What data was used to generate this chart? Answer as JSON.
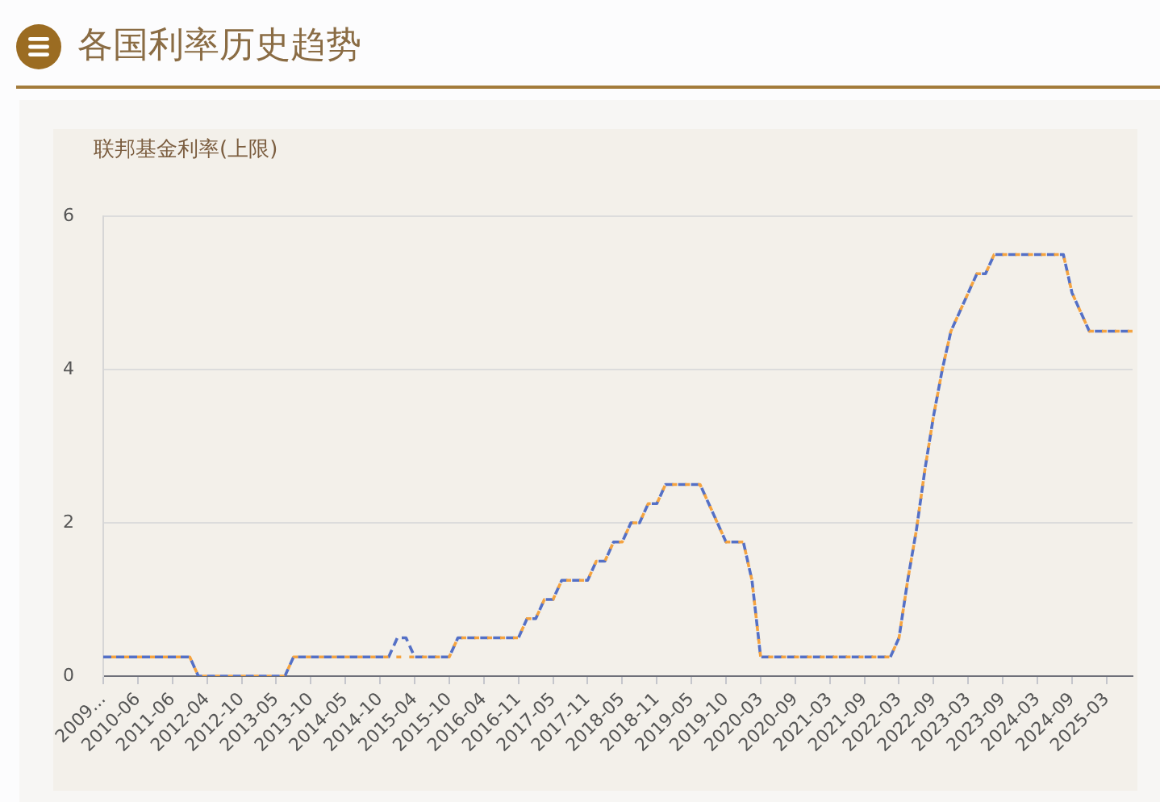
{
  "chart_data": {
    "type": "line",
    "title": "各国利率历史趋势",
    "ylabel": "联邦基金利率(上限)",
    "categories": [
      "2009...",
      null,
      null,
      null,
      "2010-06",
      null,
      null,
      null,
      "2011-06",
      null,
      null,
      null,
      "2012-04",
      null,
      null,
      null,
      "2012-10",
      null,
      null,
      null,
      "2013-05",
      null,
      null,
      null,
      "2013-10",
      null,
      null,
      null,
      "2014-05",
      null,
      null,
      null,
      "2014-10",
      null,
      null,
      null,
      "2015-04",
      null,
      null,
      null,
      "2015-10",
      null,
      null,
      null,
      "2016-04",
      null,
      null,
      null,
      "2016-11",
      null,
      null,
      null,
      "2017-05",
      null,
      null,
      null,
      "2017-11",
      null,
      null,
      null,
      "2018-05",
      null,
      null,
      null,
      "2018-11",
      null,
      null,
      null,
      "2019-05",
      null,
      null,
      null,
      "2019-10",
      null,
      null,
      null,
      "2020-03",
      null,
      null,
      null,
      "2020-09",
      null,
      null,
      null,
      "2021-03",
      null,
      null,
      null,
      "2021-09",
      null,
      null,
      null,
      "2022-03",
      null,
      null,
      null,
      "2022-09",
      null,
      null,
      null,
      "2023-03",
      null,
      null,
      null,
      "2023-09",
      null,
      null,
      null,
      "2024-03",
      null,
      null,
      null,
      "2024-09",
      null,
      null,
      null,
      "2025-03",
      null,
      null,
      null
    ],
    "series": [
      {
        "color": "#5470c6",
        "values": [
          0.25,
          0.25,
          0.25,
          0.25,
          0.25,
          0.25,
          0.25,
          0.25,
          0.25,
          0.25,
          0.25,
          0,
          0,
          0,
          0,
          0,
          0,
          0,
          0,
          0,
          0,
          0,
          0.25,
          0.25,
          0.25,
          0.25,
          0.25,
          0.25,
          0.25,
          0.25,
          0.25,
          0.25,
          0.25,
          0.25,
          0.5,
          0.5,
          0.25,
          0.25,
          0.25,
          0.25,
          0.25,
          0.5,
          0.5,
          0.5,
          0.5,
          0.5,
          0.5,
          0.5,
          0.5,
          0.75,
          0.75,
          1,
          1,
          1.25,
          1.25,
          1.25,
          1.25,
          1.5,
          1.5,
          1.75,
          1.75,
          2,
          2,
          2.25,
          2.25,
          2.5,
          2.5,
          2.5,
          2.5,
          2.5,
          2.25,
          2,
          1.75,
          1.75,
          1.75,
          1.25,
          0.25,
          0.25,
          0.25,
          0.25,
          0.25,
          0.25,
          0.25,
          0.25,
          0.25,
          0.25,
          0.25,
          0.25,
          0.25,
          0.25,
          0.25,
          0.25,
          0.5,
          1.25,
          1.9,
          2.7,
          3.4,
          4,
          4.5,
          4.75,
          5,
          5.25,
          5.25,
          5.5,
          5.5,
          5.5,
          5.5,
          5.5,
          5.5,
          5.5,
          5.5,
          5.5,
          5,
          4.75,
          4.5,
          4.5,
          4.5,
          4.5,
          4.5,
          4.5
        ]
      },
      {
        "color": "#f4a340",
        "values": [
          0.25,
          0.25,
          0.25,
          0.25,
          0.25,
          0.25,
          0.25,
          0.25,
          0.25,
          0.25,
          0.25,
          0,
          0,
          0,
          0,
          0,
          0,
          0,
          0,
          0,
          0,
          0,
          0.25,
          0.25,
          0.25,
          0.25,
          0.25,
          0.25,
          0.25,
          0.25,
          0.25,
          0.25,
          0.25,
          0.25,
          0.25,
          0.25,
          0.25,
          0.25,
          0.25,
          0.25,
          0.25,
          0.5,
          0.5,
          0.5,
          0.5,
          0.5,
          0.5,
          0.5,
          0.5,
          0.75,
          0.75,
          1,
          1,
          1.25,
          1.25,
          1.25,
          1.25,
          1.5,
          1.5,
          1.75,
          1.75,
          2,
          2,
          2.25,
          2.25,
          2.5,
          2.5,
          2.5,
          2.5,
          2.5,
          2.25,
          2,
          1.75,
          1.75,
          1.75,
          1.25,
          0.25,
          0.25,
          0.25,
          0.25,
          0.25,
          0.25,
          0.25,
          0.25,
          0.25,
          0.25,
          0.25,
          0.25,
          0.25,
          0.25,
          0.25,
          0.25,
          0.5,
          1.25,
          1.9,
          2.7,
          3.4,
          4,
          4.5,
          4.75,
          5,
          5.25,
          5.25,
          5.5,
          5.5,
          5.5,
          5.5,
          5.5,
          5.5,
          5.5,
          5.5,
          5.5,
          5,
          4.75,
          4.5,
          4.5,
          4.5,
          4.5,
          4.5,
          4.5
        ]
      }
    ],
    "ylim": [
      0,
      6
    ],
    "yticks": [
      0,
      2,
      4,
      6
    ],
    "grid": "y",
    "marker": "none",
    "line_style": "dashed"
  }
}
